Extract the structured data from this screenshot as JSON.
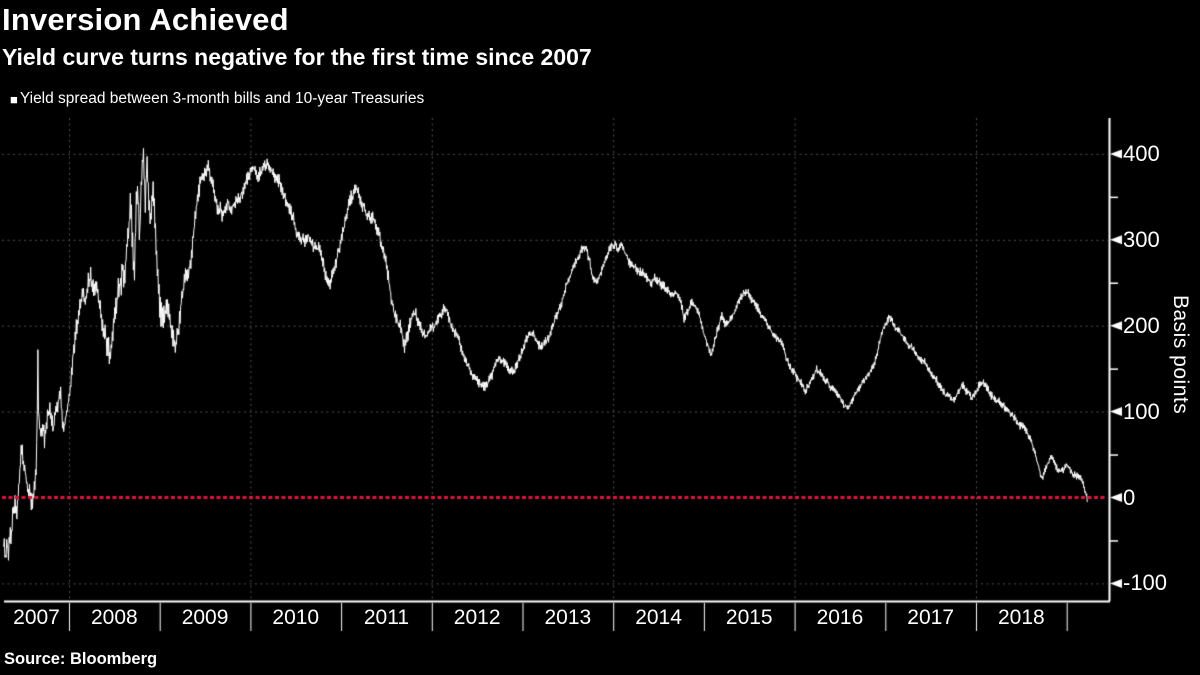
{
  "title": "Inversion Achieved",
  "subtitle": "Yield curve turns negative for the first time since 2007",
  "legend": {
    "marker": "■",
    "label": "Yield spread between 3-month bills and 10-year Treasuries"
  },
  "source": "Source: Bloomberg",
  "colors": {
    "background": "#000000",
    "text": "#ffffff",
    "grid": "#505050",
    "axis": "#ffffff",
    "series": "#ffffff",
    "zero_line": "#dc143c"
  },
  "chart_data": {
    "type": "line",
    "title": "Inversion Achieved",
    "series_name": "Yield spread between 3-month bills and 10-year Treasuries",
    "ylabel": "Basis points",
    "y_ticks": [
      400,
      300,
      200,
      100,
      0,
      -100
    ],
    "y_minor_ticks": [
      350,
      250,
      150,
      50,
      -50
    ],
    "x_tick_years": [
      2007,
      2008,
      2009,
      2010,
      2011,
      2012,
      2013,
      2014,
      2015,
      2016,
      2017,
      2018
    ],
    "grid_years": [
      2008,
      2010,
      2012,
      2014,
      2016,
      2018
    ],
    "ylim": [
      -122,
      442
    ],
    "x_range": [
      2007.28,
      2019.23
    ],
    "zero_line_bp": 0,
    "grid": true,
    "legend_position": "top-left",
    "points": [
      [
        2007.28,
        -55
      ],
      [
        2007.3,
        -68
      ],
      [
        2007.315,
        -45
      ],
      [
        2007.33,
        -62
      ],
      [
        2007.345,
        -40
      ],
      [
        2007.36,
        -50
      ],
      [
        2007.38,
        -25
      ],
      [
        2007.4,
        -12
      ],
      [
        2007.42,
        -20
      ],
      [
        2007.44,
        8
      ],
      [
        2007.46,
        30
      ],
      [
        2007.48,
        62
      ],
      [
        2007.5,
        38
      ],
      [
        2007.52,
        25
      ],
      [
        2007.54,
        12
      ],
      [
        2007.56,
        8
      ],
      [
        2007.58,
        -2
      ],
      [
        2007.6,
        -8
      ],
      [
        2007.62,
        15
      ],
      [
        2007.64,
        40
      ],
      [
        2007.652,
        120
      ],
      [
        2007.658,
        178
      ],
      [
        2007.663,
        120
      ],
      [
        2007.67,
        95
      ],
      [
        2007.69,
        78
      ],
      [
        2007.71,
        88
      ],
      [
        2007.73,
        72
      ],
      [
        2007.75,
        85
      ],
      [
        2007.77,
        100
      ],
      [
        2007.79,
        108
      ],
      [
        2007.81,
        90
      ],
      [
        2007.83,
        82
      ],
      [
        2007.85,
        95
      ],
      [
        2007.87,
        102
      ],
      [
        2007.89,
        112
      ],
      [
        2007.91,
        118
      ],
      [
        2007.93,
        78
      ],
      [
        2007.95,
        85
      ],
      [
        2007.97,
        95
      ],
      [
        2008.0,
        112
      ],
      [
        2008.03,
        145
      ],
      [
        2008.06,
        175
      ],
      [
        2008.09,
        200
      ],
      [
        2008.12,
        218
      ],
      [
        2008.15,
        238
      ],
      [
        2008.18,
        225
      ],
      [
        2008.21,
        248
      ],
      [
        2008.24,
        258
      ],
      [
        2008.27,
        242
      ],
      [
        2008.3,
        250
      ],
      [
        2008.33,
        230
      ],
      [
        2008.36,
        215
      ],
      [
        2008.39,
        192
      ],
      [
        2008.42,
        178
      ],
      [
        2008.45,
        170
      ],
      [
        2008.48,
        195
      ],
      [
        2008.51,
        215
      ],
      [
        2008.54,
        235
      ],
      [
        2008.57,
        248
      ],
      [
        2008.6,
        260
      ],
      [
        2008.63,
        275
      ],
      [
        2008.66,
        310
      ],
      [
        2008.68,
        345
      ],
      [
        2008.7,
        290
      ],
      [
        2008.72,
        250
      ],
      [
        2008.74,
        330
      ],
      [
        2008.76,
        365
      ],
      [
        2008.78,
        305
      ],
      [
        2008.8,
        375
      ],
      [
        2008.82,
        400
      ],
      [
        2008.84,
        345
      ],
      [
        2008.86,
        380
      ],
      [
        2008.88,
        350
      ],
      [
        2008.9,
        325
      ],
      [
        2008.92,
        355
      ],
      [
        2008.94,
        330
      ],
      [
        2008.96,
        295
      ],
      [
        2008.98,
        255
      ],
      [
        2009.0,
        218
      ],
      [
        2009.03,
        200
      ],
      [
        2009.06,
        215
      ],
      [
        2009.09,
        228
      ],
      [
        2009.12,
        205
      ],
      [
        2009.15,
        192
      ],
      [
        2009.18,
        186
      ],
      [
        2009.21,
        205
      ],
      [
        2009.24,
        235
      ],
      [
        2009.27,
        252
      ],
      [
        2009.3,
        262
      ],
      [
        2009.33,
        275
      ],
      [
        2009.36,
        295
      ],
      [
        2009.39,
        325
      ],
      [
        2009.42,
        350
      ],
      [
        2009.45,
        368
      ],
      [
        2009.48,
        372
      ],
      [
        2009.51,
        368
      ],
      [
        2009.54,
        382
      ],
      [
        2009.57,
        365
      ],
      [
        2009.6,
        352
      ],
      [
        2009.63,
        340
      ],
      [
        2009.66,
        332
      ],
      [
        2009.69,
        328
      ],
      [
        2009.72,
        342
      ],
      [
        2009.75,
        348
      ],
      [
        2009.78,
        336
      ],
      [
        2009.81,
        342
      ],
      [
        2009.84,
        352
      ],
      [
        2009.87,
        348
      ],
      [
        2009.9,
        358
      ],
      [
        2009.93,
        362
      ],
      [
        2009.96,
        368
      ],
      [
        2010.0,
        375
      ],
      [
        2010.04,
        382
      ],
      [
        2010.08,
        372
      ],
      [
        2010.12,
        376
      ],
      [
        2010.16,
        380
      ],
      [
        2010.2,
        385
      ],
      [
        2010.24,
        380
      ],
      [
        2010.28,
        372
      ],
      [
        2010.32,
        368
      ],
      [
        2010.36,
        355
      ],
      [
        2010.4,
        342
      ],
      [
        2010.44,
        330
      ],
      [
        2010.48,
        318
      ],
      [
        2010.52,
        308
      ],
      [
        2010.56,
        300
      ],
      [
        2010.6,
        296
      ],
      [
        2010.64,
        302
      ],
      [
        2010.68,
        292
      ],
      [
        2010.72,
        288
      ],
      [
        2010.76,
        282
      ],
      [
        2010.8,
        268
      ],
      [
        2010.84,
        256
      ],
      [
        2010.88,
        250
      ],
      [
        2010.92,
        262
      ],
      [
        2010.96,
        280
      ],
      [
        2011.0,
        298
      ],
      [
        2011.04,
        318
      ],
      [
        2011.08,
        338
      ],
      [
        2011.12,
        348
      ],
      [
        2011.16,
        360
      ],
      [
        2011.2,
        352
      ],
      [
        2011.24,
        342
      ],
      [
        2011.28,
        332
      ],
      [
        2011.32,
        325
      ],
      [
        2011.36,
        318
      ],
      [
        2011.4,
        308
      ],
      [
        2011.44,
        298
      ],
      [
        2011.48,
        285
      ],
      [
        2011.52,
        262
      ],
      [
        2011.55,
        235
      ],
      [
        2011.58,
        215
      ],
      [
        2011.62,
        205
      ],
      [
        2011.66,
        195
      ],
      [
        2011.7,
        176
      ],
      [
        2011.74,
        190
      ],
      [
        2011.78,
        212
      ],
      [
        2011.82,
        218
      ],
      [
        2011.86,
        205
      ],
      [
        2011.9,
        196
      ],
      [
        2011.94,
        190
      ],
      [
        2011.98,
        194
      ],
      [
        2012.02,
        198
      ],
      [
        2012.06,
        205
      ],
      [
        2012.1,
        215
      ],
      [
        2012.14,
        224
      ],
      [
        2012.18,
        215
      ],
      [
        2012.22,
        202
      ],
      [
        2012.26,
        192
      ],
      [
        2012.3,
        184
      ],
      [
        2012.34,
        168
      ],
      [
        2012.38,
        155
      ],
      [
        2012.42,
        148
      ],
      [
        2012.46,
        142
      ],
      [
        2012.5,
        137
      ],
      [
        2012.54,
        132
      ],
      [
        2012.58,
        128
      ],
      [
        2012.62,
        133
      ],
      [
        2012.66,
        142
      ],
      [
        2012.7,
        158
      ],
      [
        2012.74,
        165
      ],
      [
        2012.78,
        162
      ],
      [
        2012.82,
        158
      ],
      [
        2012.86,
        152
      ],
      [
        2012.9,
        148
      ],
      [
        2012.94,
        155
      ],
      [
        2012.98,
        168
      ],
      [
        2013.02,
        178
      ],
      [
        2013.06,
        186
      ],
      [
        2013.1,
        190
      ],
      [
        2013.14,
        186
      ],
      [
        2013.18,
        178
      ],
      [
        2013.22,
        174
      ],
      [
        2013.26,
        180
      ],
      [
        2013.3,
        188
      ],
      [
        2013.34,
        202
      ],
      [
        2013.38,
        212
      ],
      [
        2013.42,
        222
      ],
      [
        2013.46,
        238
      ],
      [
        2013.5,
        252
      ],
      [
        2013.54,
        262
      ],
      [
        2013.58,
        272
      ],
      [
        2013.62,
        280
      ],
      [
        2013.66,
        288
      ],
      [
        2013.7,
        292
      ],
      [
        2013.74,
        275
      ],
      [
        2013.78,
        255
      ],
      [
        2013.82,
        252
      ],
      [
        2013.86,
        262
      ],
      [
        2013.9,
        272
      ],
      [
        2013.94,
        282
      ],
      [
        2013.98,
        292
      ],
      [
        2014.02,
        295
      ],
      [
        2014.06,
        288
      ],
      [
        2014.1,
        292
      ],
      [
        2014.14,
        282
      ],
      [
        2014.18,
        275
      ],
      [
        2014.22,
        270
      ],
      [
        2014.26,
        266
      ],
      [
        2014.3,
        262
      ],
      [
        2014.34,
        258
      ],
      [
        2014.38,
        254
      ],
      [
        2014.42,
        250
      ],
      [
        2014.46,
        255
      ],
      [
        2014.5,
        250
      ],
      [
        2014.54,
        246
      ],
      [
        2014.58,
        242
      ],
      [
        2014.62,
        238
      ],
      [
        2014.66,
        235
      ],
      [
        2014.7,
        242
      ],
      [
        2014.74,
        232
      ],
      [
        2014.78,
        212
      ],
      [
        2014.82,
        222
      ],
      [
        2014.86,
        230
      ],
      [
        2014.9,
        226
      ],
      [
        2014.94,
        215
      ],
      [
        2015.0,
        192
      ],
      [
        2015.04,
        180
      ],
      [
        2015.08,
        168
      ],
      [
        2015.12,
        182
      ],
      [
        2015.16,
        198
      ],
      [
        2015.2,
        212
      ],
      [
        2015.24,
        202
      ],
      [
        2015.28,
        206
      ],
      [
        2015.32,
        215
      ],
      [
        2015.36,
        222
      ],
      [
        2015.4,
        230
      ],
      [
        2015.44,
        240
      ],
      [
        2015.48,
        238
      ],
      [
        2015.52,
        232
      ],
      [
        2015.56,
        224
      ],
      [
        2015.6,
        218
      ],
      [
        2015.64,
        212
      ],
      [
        2015.68,
        206
      ],
      [
        2015.72,
        200
      ],
      [
        2015.76,
        192
      ],
      [
        2015.8,
        186
      ],
      [
        2015.84,
        182
      ],
      [
        2015.88,
        172
      ],
      [
        2015.92,
        158
      ],
      [
        2015.96,
        150
      ],
      [
        2016.0,
        146
      ],
      [
        2016.04,
        140
      ],
      [
        2016.08,
        134
      ],
      [
        2016.12,
        128
      ],
      [
        2016.16,
        134
      ],
      [
        2016.2,
        142
      ],
      [
        2016.24,
        150
      ],
      [
        2016.28,
        146
      ],
      [
        2016.32,
        140
      ],
      [
        2016.36,
        136
      ],
      [
        2016.4,
        130
      ],
      [
        2016.44,
        126
      ],
      [
        2016.48,
        120
      ],
      [
        2016.52,
        114
      ],
      [
        2016.56,
        108
      ],
      [
        2016.6,
        106
      ],
      [
        2016.64,
        114
      ],
      [
        2016.68,
        122
      ],
      [
        2016.72,
        128
      ],
      [
        2016.76,
        134
      ],
      [
        2016.8,
        140
      ],
      [
        2016.84,
        148
      ],
      [
        2016.88,
        158
      ],
      [
        2016.92,
        172
      ],
      [
        2016.96,
        188
      ],
      [
        2017.0,
        202
      ],
      [
        2017.04,
        210
      ],
      [
        2017.08,
        204
      ],
      [
        2017.12,
        196
      ],
      [
        2017.16,
        192
      ],
      [
        2017.2,
        186
      ],
      [
        2017.24,
        180
      ],
      [
        2017.28,
        176
      ],
      [
        2017.32,
        172
      ],
      [
        2017.36,
        166
      ],
      [
        2017.4,
        160
      ],
      [
        2017.44,
        156
      ],
      [
        2017.48,
        150
      ],
      [
        2017.52,
        143
      ],
      [
        2017.56,
        137
      ],
      [
        2017.6,
        131
      ],
      [
        2017.64,
        126
      ],
      [
        2017.68,
        120
      ],
      [
        2017.72,
        116
      ],
      [
        2017.76,
        113
      ],
      [
        2017.8,
        122
      ],
      [
        2017.84,
        132
      ],
      [
        2017.88,
        128
      ],
      [
        2017.92,
        122
      ],
      [
        2017.96,
        118
      ],
      [
        2018.0,
        124
      ],
      [
        2018.04,
        130
      ],
      [
        2018.08,
        134
      ],
      [
        2018.12,
        128
      ],
      [
        2018.16,
        120
      ],
      [
        2018.2,
        115
      ],
      [
        2018.24,
        111
      ],
      [
        2018.28,
        107
      ],
      [
        2018.32,
        103
      ],
      [
        2018.36,
        98
      ],
      [
        2018.4,
        95
      ],
      [
        2018.44,
        92
      ],
      [
        2018.48,
        88
      ],
      [
        2018.52,
        83
      ],
      [
        2018.56,
        77
      ],
      [
        2018.6,
        68
      ],
      [
        2018.64,
        56
      ],
      [
        2018.68,
        40
      ],
      [
        2018.72,
        24
      ],
      [
        2018.76,
        32
      ],
      [
        2018.8,
        42
      ],
      [
        2018.84,
        46
      ],
      [
        2018.88,
        35
      ],
      [
        2018.92,
        28
      ],
      [
        2018.96,
        30
      ],
      [
        2019.0,
        38
      ],
      [
        2019.04,
        32
      ],
      [
        2019.08,
        26
      ],
      [
        2019.12,
        25
      ],
      [
        2019.16,
        22
      ],
      [
        2019.19,
        14
      ],
      [
        2019.215,
        2
      ],
      [
        2019.23,
        -4
      ]
    ],
    "daily_noise_bp": [
      [
        2007.28,
        13
      ],
      [
        2008.3,
        11
      ],
      [
        2008.55,
        20
      ],
      [
        2008.95,
        20
      ],
      [
        2009.2,
        12
      ],
      [
        2009.6,
        10
      ],
      [
        2010.5,
        8
      ],
      [
        2011.5,
        9
      ],
      [
        2012.2,
        6
      ],
      [
        2015.0,
        5.5
      ],
      [
        2017.0,
        4.5
      ],
      [
        2018.6,
        5
      ],
      [
        2019.23,
        4
      ]
    ]
  }
}
